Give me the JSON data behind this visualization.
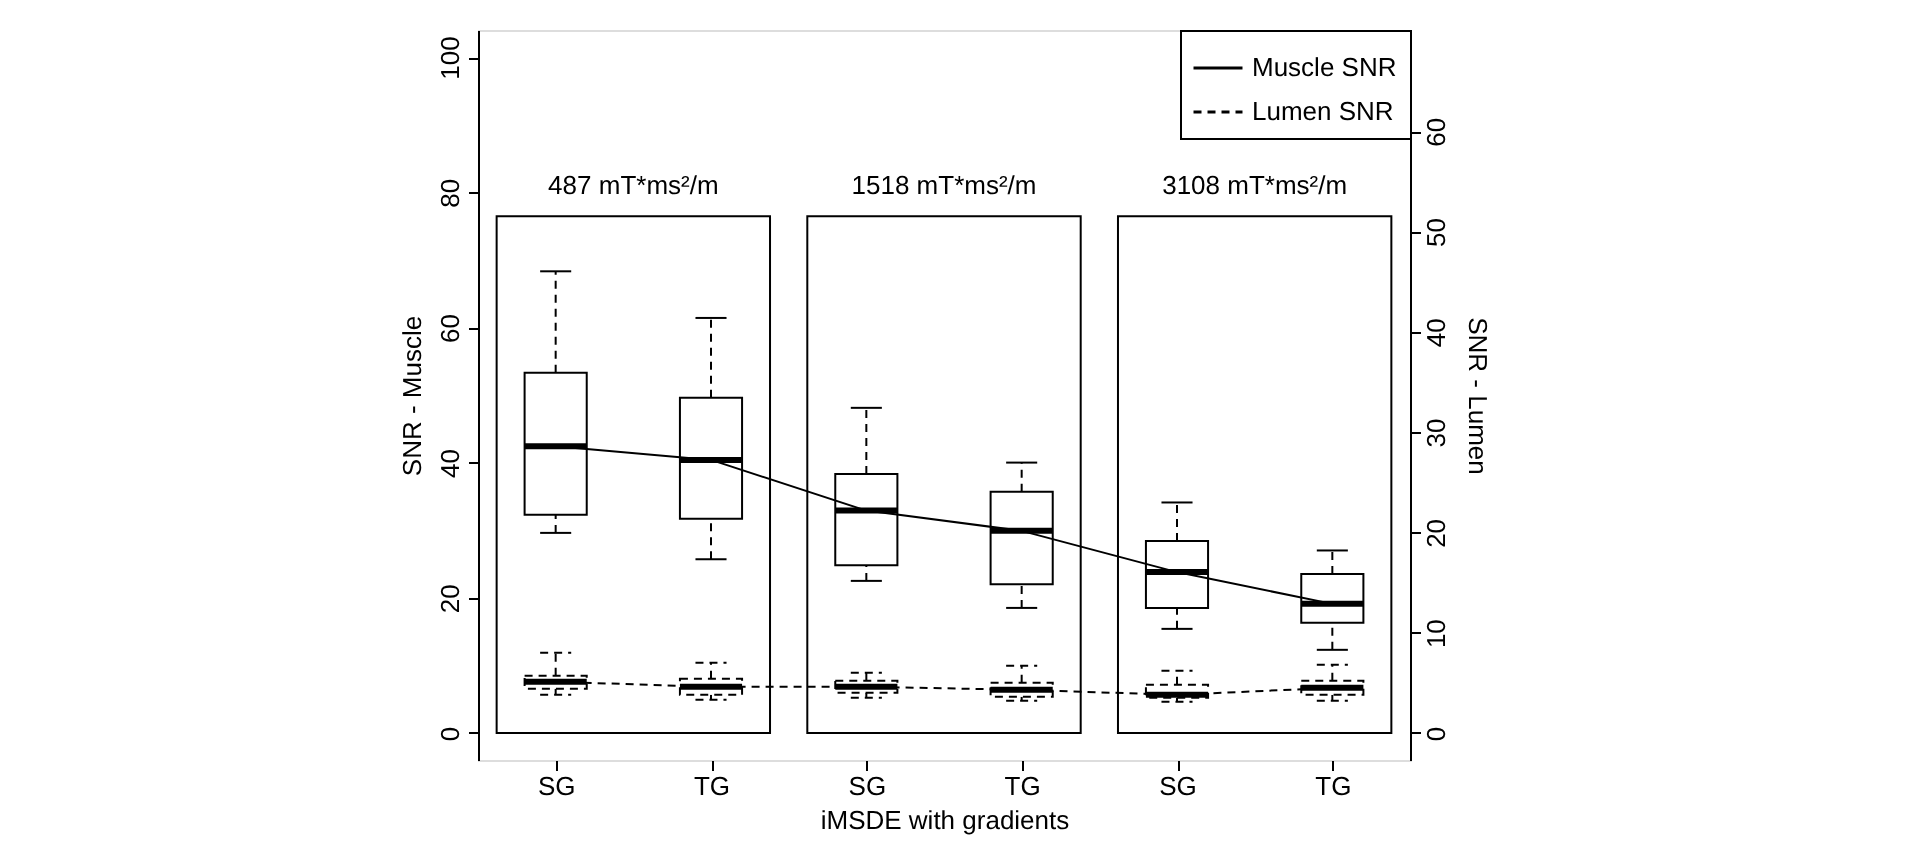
{
  "chart_data": {
    "type": "box",
    "categories": [
      "SG",
      "TG",
      "SG",
      "TG",
      "SG",
      "TG"
    ],
    "xlabel": "iMSDE with gradients",
    "ylabel": "SNR - Muscle",
    "y2label": "SNR - Lumen",
    "ylim": [
      -4,
      104
    ],
    "yticks": [
      0,
      20,
      40,
      60,
      80,
      100
    ],
    "y2lim": [
      -2.7,
      70.1
    ],
    "y2ticks": [
      0,
      10,
      20,
      30,
      40,
      50,
      60
    ],
    "annotations": [
      "487 mT*ms²/m",
      "1518 mT*ms²/m",
      "3108 mT*ms²/m"
    ],
    "grid": false,
    "legend": "top right",
    "series": [
      {
        "color": "#000000",
        "line_style": "solid",
        "boxes": [
          {
            "low": 29.6,
            "q1": 32.3,
            "median": 42.4,
            "q3": 53.3,
            "high": 68.3
          },
          {
            "low": 25.7,
            "q1": 31.7,
            "median": 40.4,
            "q3": 49.6,
            "high": 61.4
          },
          {
            "low": 22.5,
            "q1": 24.8,
            "median": 32.9,
            "q3": 38.3,
            "high": 48.1
          },
          {
            "low": 18.5,
            "q1": 22.0,
            "median": 29.9,
            "q3": 35.7,
            "high": 40.0
          },
          {
            "low": 15.4,
            "q1": 18.5,
            "median": 23.8,
            "q3": 28.4,
            "high": 34.1
          },
          {
            "low": 12.3,
            "q1": 16.3,
            "median": 19.1,
            "q3": 23.5,
            "high": 27.0
          }
        ]
      },
      {
        "color": "#000000",
        "line_style": "dashed",
        "axis": "y2",
        "boxes": [
          {
            "low": 3.8,
            "q1": 4.4,
            "median": 5.1,
            "q3": 5.7,
            "high": 8.0
          },
          {
            "low": 3.3,
            "q1": 3.8,
            "median": 4.6,
            "q3": 5.4,
            "high": 7.0
          },
          {
            "low": 3.5,
            "q1": 4.0,
            "median": 4.6,
            "q3": 5.2,
            "high": 6.0
          },
          {
            "low": 3.2,
            "q1": 3.6,
            "median": 4.3,
            "q3": 5.0,
            "high": 6.7
          },
          {
            "low": 3.1,
            "q1": 3.5,
            "median": 3.8,
            "q3": 4.8,
            "high": 6.2
          },
          {
            "low": 3.2,
            "q1": 3.8,
            "median": 4.5,
            "q3": 5.2,
            "high": 6.8
          }
        ]
      },
      {
        "type": "line",
        "name": "Muscle SNR",
        "color": "#000000",
        "line_style": "solid",
        "values": [
          42.4,
          40.4,
          32.9,
          29.9,
          23.8,
          19.1
        ]
      },
      {
        "type": "line",
        "name": "Lumen SNR",
        "color": "#000000",
        "line_style": "dashed",
        "axis": "y2",
        "values": [
          5.1,
          4.6,
          4.6,
          4.3,
          3.8,
          4.5
        ]
      }
    ]
  }
}
